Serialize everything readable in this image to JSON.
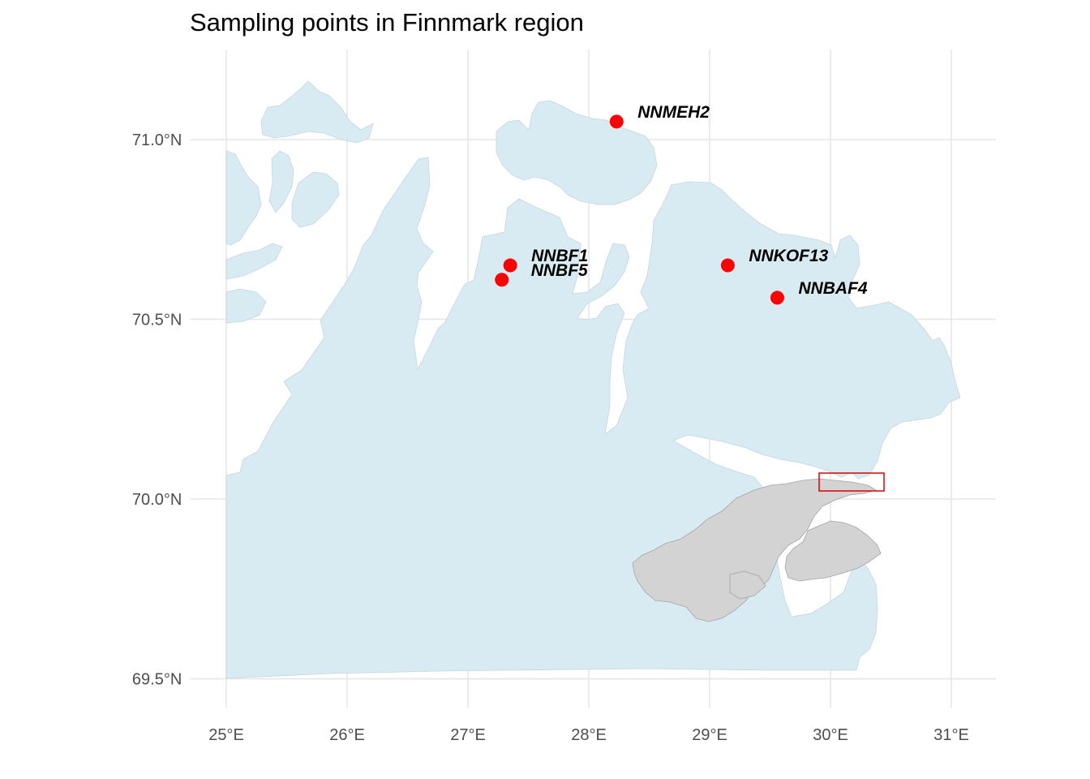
{
  "title": "Sampling points in Finnmark region",
  "colors": {
    "land": "#d8ebf2",
    "land_border": "#c4d6dd",
    "grid": "#e6e6e6",
    "point": "#ff0000",
    "inset_land": "#d3d3d3",
    "inset_border": "#a3a3a3",
    "inset_box": "#e00000"
  },
  "axes": {
    "x_ticks": [
      {
        "value": 25,
        "label": "25°E"
      },
      {
        "value": 26,
        "label": "26°E"
      },
      {
        "value": 27,
        "label": "27°E"
      },
      {
        "value": 28,
        "label": "28°E"
      },
      {
        "value": 29,
        "label": "29°E"
      },
      {
        "value": 30,
        "label": "30°E"
      },
      {
        "value": 31,
        "label": "31°E"
      }
    ],
    "y_ticks": [
      {
        "value": 71.0,
        "label": "71.0°N"
      },
      {
        "value": 70.5,
        "label": "70.5°N"
      },
      {
        "value": 70.0,
        "label": "70.0°N"
      },
      {
        "value": 69.5,
        "label": "69.5°N"
      }
    ],
    "xlim": [
      24.7,
      31.37
    ],
    "ylim": [
      69.42,
      71.25
    ]
  },
  "points": [
    {
      "name": "NNMEH2",
      "lon": 28.23,
      "lat": 71.05
    },
    {
      "name": "NNBF1",
      "lon": 27.35,
      "lat": 70.65
    },
    {
      "name": "NNBF5",
      "lon": 27.28,
      "lat": 70.61
    },
    {
      "name": "NNKOF13",
      "lon": 29.15,
      "lat": 70.65
    },
    {
      "name": "NNBAF4",
      "lon": 29.56,
      "lat": 70.56
    }
  ],
  "inset": {
    "description_icon": "scandinavia-inset-map"
  }
}
